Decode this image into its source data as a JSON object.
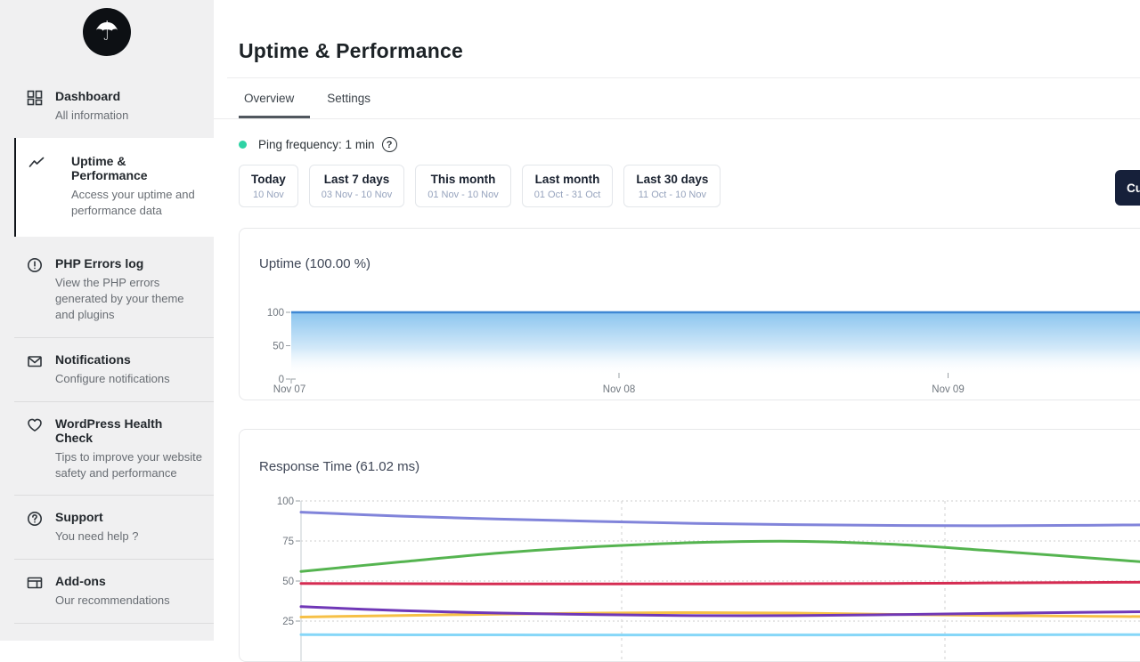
{
  "icons": {
    "umbrella_glyph": "☂",
    "help_glyph": "?"
  },
  "sidebar": {
    "items": [
      {
        "icon": "dashboard",
        "label": "Dashboard",
        "description": "All information",
        "active": false
      },
      {
        "icon": "trend-line",
        "label": "Uptime & Performance",
        "description": "Access your uptime and performance data",
        "active": true
      },
      {
        "icon": "alert-circle",
        "label": "PHP Errors log",
        "description": "View the PHP errors generated by your theme and plugins",
        "active": false
      },
      {
        "icon": "envelope",
        "label": "Notifications",
        "description": "Configure notifications",
        "active": false
      },
      {
        "icon": "heart",
        "label": "WordPress Health Check",
        "description": "Tips to improve your website safety and performance",
        "active": false
      },
      {
        "icon": "question-circle",
        "label": "Support",
        "description": "You need help ?",
        "active": false
      },
      {
        "icon": "card-layout",
        "label": "Add-ons",
        "description": "Our recommendations",
        "active": false
      }
    ]
  },
  "header": {
    "title": "Uptime & Performance",
    "tabs": [
      {
        "label": "Overview",
        "active": true
      },
      {
        "label": "Settings",
        "active": false
      }
    ]
  },
  "toolbar": {
    "ping_label": "Ping frequency: 1 min",
    "ranges": [
      {
        "label": "Today",
        "dates": "10 Nov"
      },
      {
        "label": "Last 7 days",
        "dates": "03 Nov - 10 Nov"
      },
      {
        "label": "This month",
        "dates": "01 Nov - 10 Nov"
      },
      {
        "label": "Last month",
        "dates": "01 Oct - 31 Oct"
      },
      {
        "label": "Last 30 days",
        "dates": "11 Oct - 10 Nov"
      }
    ],
    "custom_label": "Custom",
    "custom_button_color": "#16203a",
    "ping_dot_color": "#2fd3a5"
  },
  "chart_data": [
    {
      "type": "area",
      "title": "Uptime (100.00 %)",
      "x_ticks": [
        "Nov 07",
        "Nov 08",
        "Nov 09"
      ],
      "yticks": [
        0,
        50,
        100
      ],
      "ylim": [
        0,
        100
      ],
      "grid": false,
      "legend": false,
      "series": [
        {
          "name": "uptime-percent",
          "color": "#3f88d4",
          "fill_top": "#85c2ee",
          "values": [
            100,
            100,
            100,
            100,
            100,
            100,
            100,
            100,
            100,
            100
          ]
        }
      ]
    },
    {
      "type": "line",
      "title": "Response Time (61.02 ms)",
      "yticks": [
        25,
        50,
        75,
        100
      ],
      "ylim": [
        25,
        100
      ],
      "grid": "dotted horizontal gridlines at each y tick; dashed vertical gridlines at day boundaries (Nov 08, Nov 09); x axis labels cut off below viewport",
      "legend": false,
      "series": [
        {
          "name": "periwinkle",
          "color": "#8184da",
          "values": [
            93,
            90.5,
            88.7,
            87.2,
            86,
            85.2,
            84.7,
            84.5,
            84.8,
            85.3
          ]
        },
        {
          "name": "green",
          "color": "#55b450",
          "values": [
            56,
            62,
            67.5,
            71.5,
            74,
            74.8,
            73,
            69,
            64.5,
            60
          ]
        },
        {
          "name": "red",
          "color": "#d52c52",
          "values": [
            48.5,
            48.3,
            48.2,
            48.2,
            48.2,
            48.3,
            48.5,
            48.8,
            49.1,
            49.4
          ]
        },
        {
          "name": "amber",
          "color": "#f6c046",
          "values": [
            27.5,
            28.5,
            29.3,
            30,
            30.3,
            30,
            29.2,
            28.5,
            28,
            27.6
          ]
        },
        {
          "name": "purple",
          "color": "#7038b7",
          "values": [
            34,
            31.5,
            30,
            29,
            28.4,
            28.4,
            29,
            29.8,
            30.5,
            31
          ]
        },
        {
          "name": "light-blue",
          "color": "#86d7f8",
          "values": [
            16.5,
            16.4,
            16.4,
            16.3,
            16.3,
            16.3,
            16.4,
            16.4,
            16.5,
            16.5
          ]
        }
      ]
    }
  ]
}
